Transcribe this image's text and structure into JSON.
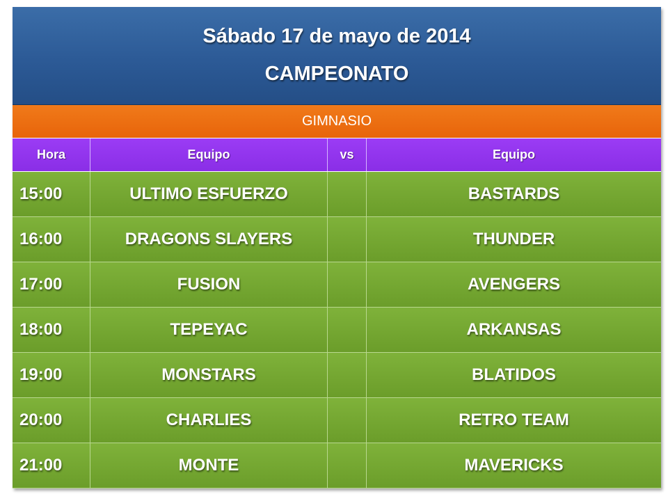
{
  "header": {
    "date": "Sábado 17 de mayo de 2014",
    "event": "CAMPEONATO"
  },
  "venue": "GIMNASIO",
  "columns": {
    "hora": "Hora",
    "team1": "Equipo",
    "vs": "vs",
    "team2": "Equipo"
  },
  "matches": [
    {
      "time": "15:00",
      "team1": "ULTIMO ESFUERZO",
      "vs": "",
      "team2": "BASTARDS"
    },
    {
      "time": "16:00",
      "team1": "DRAGONS SLAYERS",
      "vs": "",
      "team2": "THUNDER"
    },
    {
      "time": "17:00",
      "team1": "FUSION",
      "vs": "",
      "team2": "AVENGERS"
    },
    {
      "time": "18:00",
      "team1": "TEPEYAC",
      "vs": "",
      "team2": "ARKANSAS"
    },
    {
      "time": "19:00",
      "team1": "MONSTARS",
      "vs": "",
      "team2": "BLATIDOS"
    },
    {
      "time": "20:00",
      "team1": "CHARLIES",
      "vs": "",
      "team2": "RETRO TEAM"
    },
    {
      "time": "21:00",
      "team1": "MONTE",
      "vs": "",
      "team2": "MAVERICKS"
    }
  ],
  "colors": {
    "title_bg": "#2c5a96",
    "venue_bg": "#e8640a",
    "header_bg": "#8a2ee6",
    "row_bg": "#6b9d2a"
  }
}
